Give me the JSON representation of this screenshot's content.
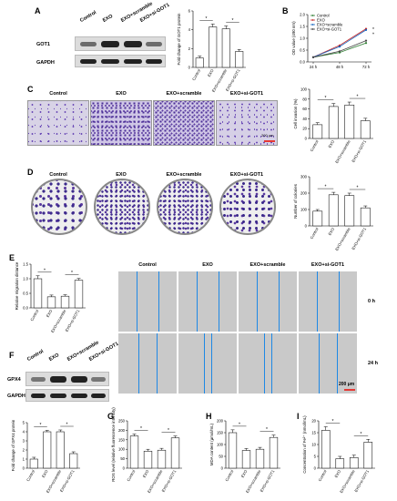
{
  "panels": {
    "A": {
      "letter": "A",
      "lanes": [
        "Control",
        "EXO",
        "EXO+scramble",
        "EXO+si-GOT1"
      ],
      "rows": [
        "GOT1",
        "GAPDH"
      ],
      "chart_data": {
        "type": "bar",
        "categories": [
          "Control",
          "EXO",
          "EXO+scramble",
          "EXO+si-GOT1"
        ],
        "values": [
          1.0,
          4.3,
          4.1,
          1.7
        ],
        "errors": [
          0.2,
          0.3,
          0.3,
          0.2
        ],
        "ylabel": "Fold change of GOT1 protein",
        "ylim": [
          0,
          6
        ],
        "yticks": [
          "0",
          "2",
          "4",
          "6"
        ],
        "sig": [
          "*",
          "*"
        ]
      }
    },
    "B": {
      "letter": "B",
      "chart_data": {
        "type": "line",
        "x": [
          "24 h",
          "48 h",
          "72 h"
        ],
        "series": [
          {
            "name": "Control",
            "values": [
              0.2,
              0.4,
              0.8
            ],
            "color": "#2e7d32"
          },
          {
            "name": "EXO",
            "values": [
              0.2,
              0.7,
              1.4
            ],
            "color": "#c62828"
          },
          {
            "name": "EXO+scramble",
            "values": [
              0.2,
              0.65,
              1.35
            ],
            "color": "#1565c0"
          },
          {
            "name": "EXO+si-GOT1",
            "values": [
              0.2,
              0.45,
              0.9
            ],
            "color": "#444444"
          }
        ],
        "ylabel": "OD value (490 nm)",
        "ylim": [
          0,
          2.0
        ],
        "yticks": [
          "0.0",
          "0.5",
          "1.0",
          "1.5",
          "2.0"
        ],
        "sig": [
          "*",
          "*"
        ]
      }
    },
    "C": {
      "letter": "C",
      "headers": [
        "Control",
        "EXO",
        "EXO+scramble",
        "EXO+si-GOT1"
      ],
      "scale": "200 μm",
      "chart_data": {
        "type": "bar",
        "categories": [
          "Control",
          "EXO",
          "EXO+scramble",
          "EXO+si-GOT1"
        ],
        "values": [
          28,
          65,
          68,
          36
        ],
        "errors": [
          4,
          6,
          6,
          5
        ],
        "ylabel": "Cell invasion (%)",
        "ylim": [
          0,
          100
        ],
        "yticks": [
          "0",
          "20",
          "40",
          "60",
          "80",
          "100"
        ],
        "sig": [
          "*",
          "*"
        ]
      }
    },
    "D": {
      "letter": "D",
      "headers": [
        "Control",
        "EXO",
        "EXO+scramble",
        "EXO+si-GOT1"
      ],
      "chart_data": {
        "type": "bar",
        "categories": [
          "Control",
          "EXO",
          "EXO+scramble",
          "EXO+si-GOT1"
        ],
        "values": [
          90,
          190,
          185,
          110
        ],
        "errors": [
          10,
          15,
          15,
          12
        ],
        "ylabel": "Number of colonies",
        "ylim": [
          0,
          300
        ],
        "yticks": [
          "0",
          "100",
          "200",
          "300"
        ],
        "sig": [
          "*",
          "*"
        ]
      }
    },
    "E": {
      "letter": "E",
      "headers": [
        "Control",
        "EXO",
        "EXO+scramble",
        "EXO+si-GOT1"
      ],
      "times": [
        "0 h",
        "24 h"
      ],
      "scale": "200 μm",
      "chart_data": {
        "type": "bar",
        "categories": [
          "Control",
          "EXO",
          "EXO+scramble",
          "EXO+si-GOT1"
        ],
        "values": [
          1.0,
          0.38,
          0.4,
          0.95
        ],
        "errors": [
          0.1,
          0.06,
          0.05,
          0.06
        ],
        "ylabel": "Relative migration distance",
        "ylim": [
          0,
          1.5
        ],
        "yticks": [
          "0.0",
          "0.5",
          "1.0",
          "1.5"
        ],
        "sig": [
          "*",
          "*"
        ]
      }
    },
    "F": {
      "letter": "F",
      "lanes": [
        "Control",
        "EXO",
        "EXO+scramble",
        "EXO+si-GOT1"
      ],
      "rows": [
        "GPX4",
        "GAPDH"
      ],
      "chart_data": {
        "type": "bar",
        "categories": [
          "Control",
          "EXO",
          "EXO+scramble",
          "EXO+si-GOT1"
        ],
        "values": [
          1.0,
          4.0,
          4.0,
          1.6
        ],
        "errors": [
          0.2,
          0.15,
          0.2,
          0.2
        ],
        "ylabel": "Fold change of GPX4 protein",
        "ylim": [
          0,
          5
        ],
        "yticks": [
          "0",
          "1",
          "2",
          "3",
          "4",
          "5"
        ],
        "sig": [
          "*",
          "*"
        ]
      }
    },
    "G": {
      "letter": "G",
      "chart_data": {
        "type": "bar",
        "categories": [
          "Control",
          "EXO",
          "EXO+scramble",
          "EXO+si-GOT1"
        ],
        "values": [
          170,
          90,
          95,
          160
        ],
        "errors": [
          10,
          10,
          10,
          10
        ],
        "ylabel": "ROS level (relative fluorescence intensity)",
        "ylim": [
          0,
          250
        ],
        "yticks": [
          "0",
          "50",
          "100",
          "150",
          "200",
          "250"
        ],
        "sig": [
          "*",
          "*"
        ]
      }
    },
    "H": {
      "letter": "H",
      "chart_data": {
        "type": "bar",
        "categories": [
          "Control",
          "EXO",
          "EXO+scramble",
          "EXO+si-GOT1"
        ],
        "values": [
          150,
          75,
          80,
          130
        ],
        "errors": [
          12,
          8,
          8,
          10
        ],
        "ylabel": "MDA content (μmol/mL)",
        "ylim": [
          0,
          200
        ],
        "yticks": [
          "0",
          "50",
          "100",
          "150",
          "200"
        ],
        "sig": [
          "*",
          "*"
        ]
      }
    },
    "I": {
      "letter": "I",
      "chart_data": {
        "type": "bar",
        "categories": [
          "Control",
          "EXO",
          "EXO+scramble",
          "EXO+si-GOT1"
        ],
        "values": [
          16,
          4,
          4.5,
          11
        ],
        "errors": [
          1.5,
          1.0,
          1.0,
          1.2
        ],
        "ylabel": "Concentration of Fe²⁺ (nmol/mL)",
        "ylim": [
          0,
          20
        ],
        "yticks": [
          "0",
          "5",
          "10",
          "15",
          "20"
        ],
        "sig": [
          "*",
          "*"
        ]
      }
    }
  },
  "colors": {
    "bar_fill": "#ffffff",
    "bar_stroke": "#222222",
    "sig_line": "#222222",
    "wound_line": "#1e88e5",
    "stain": "#5b3aa0"
  }
}
